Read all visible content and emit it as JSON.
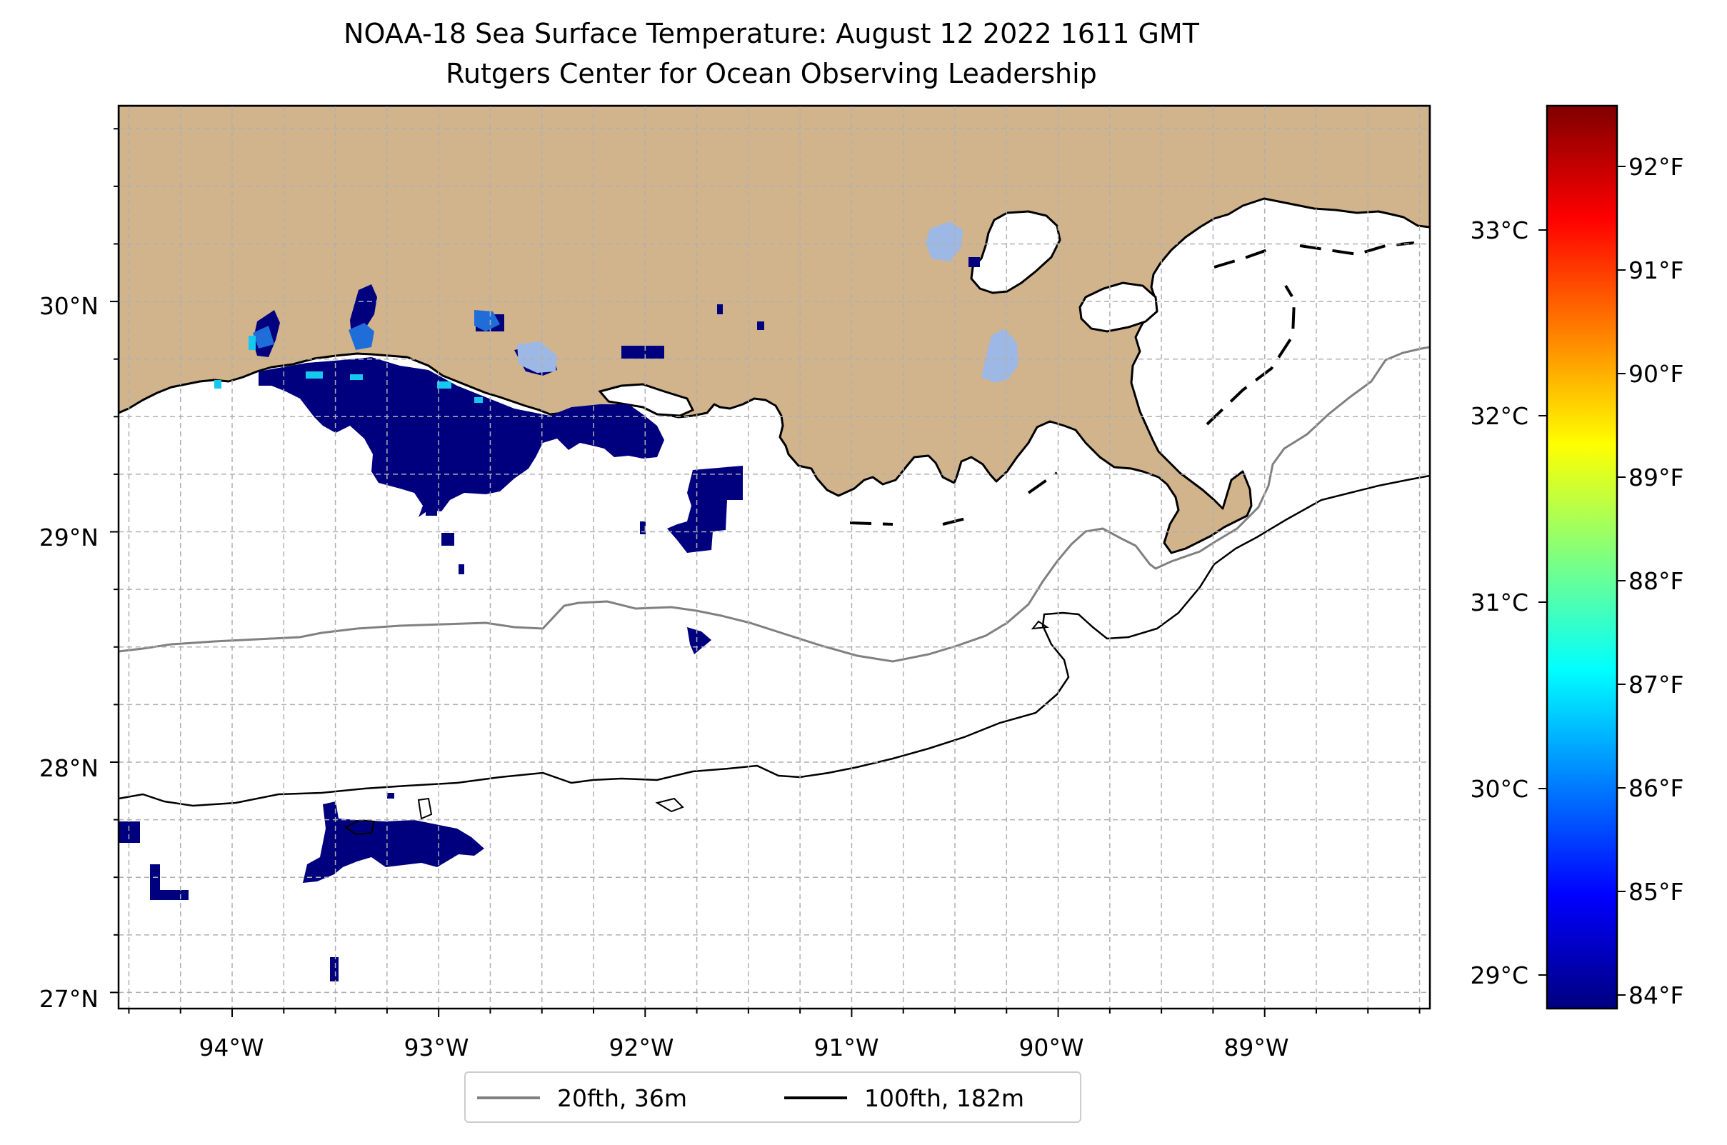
{
  "title": "NOAA-18 Sea Surface Temperature: August 12 2022 1611 GMT",
  "subtitle": "Rutgers Center for Ocean Observing Leadership",
  "map": {
    "lon_range": [
      -94.55,
      -88.2
    ],
    "lat_range": [
      26.93,
      30.85
    ],
    "grid": true,
    "land_color": "#d2b48c",
    "x_ticks": [
      "94°W",
      "93°W",
      "92°W",
      "91°W",
      "90°W",
      "89°W"
    ],
    "y_ticks": [
      "27°N",
      "28°N",
      "29°N",
      "30°N"
    ]
  },
  "colorbar": {
    "colormap": "jet",
    "celsius_ticks": [
      "29°C",
      "30°C",
      "31°C",
      "32°C",
      "33°C"
    ],
    "fahrenheit_ticks": [
      "84°F",
      "85°F",
      "86°F",
      "87°F",
      "88°F",
      "89°F",
      "90°F",
      "91°F",
      "92°F"
    ],
    "colors": [
      "#00007f",
      "#0000ff",
      "#007fff",
      "#00ffff",
      "#7fff7f",
      "#ffff00",
      "#ff7f00",
      "#ff0000",
      "#7f0000"
    ]
  },
  "legend": {
    "items": [
      {
        "label": "20fth, 36m",
        "color": "#808080"
      },
      {
        "label": "100fth, 182m",
        "color": "#000000"
      }
    ]
  },
  "colors": {
    "sst_dark": "#00007f",
    "sst_mid": "#1f6dd9",
    "sst_light": "#9db8e4",
    "sst_cyan": "#15c8f0"
  }
}
